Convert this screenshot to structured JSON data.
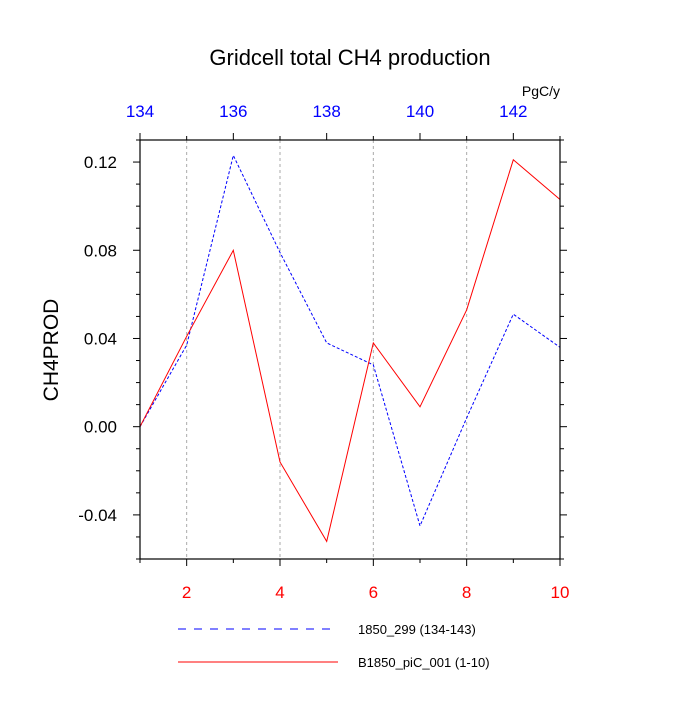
{
  "chart_data": {
    "type": "line",
    "title": "Gridcell total CH4 production",
    "ylabel": "CH4PROD",
    "units": "PgC/y",
    "ylim": [
      -0.06,
      0.13
    ],
    "yticks": [
      -0.04,
      0.0,
      0.04,
      0.08,
      0.12
    ],
    "ytick_labels": [
      "-0.04",
      "0.00",
      "0.04",
      "0.08",
      "0.12"
    ],
    "bottom_axis": {
      "xlim": [
        1,
        10
      ],
      "ticks": [
        2,
        4,
        6,
        8,
        10
      ],
      "tick_labels": [
        "2",
        "4",
        "6",
        "8",
        "10"
      ],
      "color": "#ff0000"
    },
    "top_axis": {
      "xlim": [
        134,
        143
      ],
      "ticks": [
        134,
        136,
        138,
        140,
        142
      ],
      "tick_labels": [
        "134",
        "136",
        "138",
        "140",
        "142"
      ],
      "color": "#0000ff"
    },
    "grid": "vertical dashed",
    "legend_placement": "bottom",
    "series": [
      {
        "name": "1850_299 (134-143)",
        "axis": "top",
        "style": "dashed",
        "color": "#0000ff",
        "x": [
          134,
          135,
          136,
          137,
          138,
          139,
          140,
          141,
          142,
          143
        ],
        "y": [
          0.0,
          0.037,
          0.123,
          0.079,
          0.038,
          0.028,
          -0.045,
          0.004,
          0.051,
          0.036
        ]
      },
      {
        "name": "B1850_piC_001 (1-10)",
        "axis": "bottom",
        "style": "solid",
        "color": "#ff0000",
        "x": [
          1,
          2,
          3,
          4,
          5,
          6,
          7,
          8,
          9,
          10
        ],
        "y": [
          0.0,
          0.041,
          0.08,
          -0.016,
          -0.052,
          0.038,
          0.009,
          0.053,
          0.121,
          0.103
        ]
      }
    ]
  }
}
